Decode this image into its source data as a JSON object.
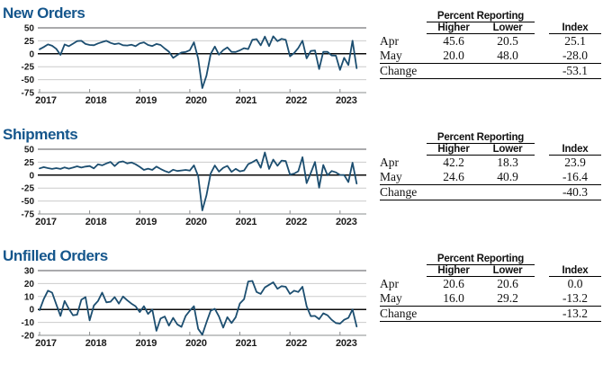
{
  "colors": {
    "title_blue": "#15568c",
    "line_blue": "#1c4e70"
  },
  "tables": [
    {
      "group_header": "Percent Reporting",
      "columns": {
        "higher": "Higher",
        "lower": "Lower",
        "index": "Index"
      },
      "rows": [
        {
          "label": "Apr",
          "higher": "45.6",
          "lower": "20.5",
          "index": "25.1"
        },
        {
          "label": "May",
          "higher": "20.0",
          "lower": "48.0",
          "index": "-28.0"
        },
        {
          "label": "Change",
          "higher": "",
          "lower": "",
          "index": "-53.1"
        }
      ]
    },
    {
      "group_header": "Percent Reporting",
      "columns": {
        "higher": "Higher",
        "lower": "Lower",
        "index": "Index"
      },
      "rows": [
        {
          "label": "Apr",
          "higher": "42.2",
          "lower": "18.3",
          "index": "23.9"
        },
        {
          "label": "May",
          "higher": "24.6",
          "lower": "40.9",
          "index": "-16.4"
        },
        {
          "label": "Change",
          "higher": "",
          "lower": "",
          "index": "-40.3"
        }
      ]
    },
    {
      "group_header": "Percent Reporting",
      "columns": {
        "higher": "Higher",
        "lower": "Lower",
        "index": "Index"
      },
      "rows": [
        {
          "label": "Apr",
          "higher": "20.6",
          "lower": "20.6",
          "index": "0.0"
        },
        {
          "label": "May",
          "higher": "16.0",
          "lower": "29.2",
          "index": "-13.2"
        },
        {
          "label": "Change",
          "higher": "",
          "lower": "",
          "index": "-13.2"
        }
      ]
    }
  ],
  "chart_data": [
    {
      "type": "line",
      "title": "New Orders",
      "x_start": "2017-01",
      "x_end": "2023-05",
      "x_tick_labels": [
        "2017",
        "2018",
        "2019",
        "2020",
        "2021",
        "2022",
        "2023"
      ],
      "y_ticks": [
        50,
        25,
        0,
        -25,
        -50,
        -75
      ],
      "ylim": [
        -75,
        50
      ],
      "grid": true,
      "legend": "none",
      "line_color": "#1c4e70",
      "values": [
        8.7,
        13.0,
        18.0,
        15.5,
        9.5,
        -2.0,
        18.0,
        14.5,
        19.5,
        24.5,
        25.0,
        19.0,
        17.0,
        16.5,
        20.0,
        22.5,
        25.0,
        21.0,
        18.5,
        20.0,
        16.5,
        16.0,
        17.5,
        14.5,
        20.0,
        22.0,
        17.0,
        15.0,
        19.0,
        17.0,
        10.0,
        4.0,
        -8.0,
        -2.5,
        2.5,
        3.5,
        7.0,
        22.1,
        -9.3,
        -66.3,
        -42.4,
        -0.6,
        13.9,
        -1.7,
        7.1,
        12.3,
        3.7,
        3.4,
        6.6,
        10.8,
        9.1,
        26.9,
        28.3,
        16.3,
        33.2,
        14.8,
        33.7,
        24.3,
        28.8,
        27.1,
        -5.0,
        1.4,
        11.1,
        25.1,
        -8.8,
        5.3,
        6.2,
        -29.6,
        3.7,
        3.7,
        -3.3,
        -3.6,
        -31.1,
        -7.8,
        -21.7,
        25.1,
        -28.0
      ]
    },
    {
      "type": "line",
      "title": "Shipments",
      "x_start": "2017-01",
      "x_end": "2023-05",
      "x_tick_labels": [
        "2017",
        "2018",
        "2019",
        "2020",
        "2021",
        "2022",
        "2023"
      ],
      "y_ticks": [
        50,
        25,
        0,
        -25,
        -50,
        -75
      ],
      "ylim": [
        -75,
        50
      ],
      "grid": true,
      "legend": "none",
      "line_color": "#1c4e70",
      "values": [
        13.0,
        15.5,
        13.5,
        12.0,
        13.5,
        12.0,
        15.0,
        12.5,
        14.5,
        17.0,
        14.5,
        16.5,
        17.5,
        13.0,
        21.0,
        19.0,
        22.5,
        25.5,
        17.5,
        25.0,
        26.5,
        22.5,
        24.5,
        21.0,
        16.0,
        10.0,
        12.5,
        10.0,
        16.5,
        12.0,
        8.0,
        5.0,
        10.5,
        8.0,
        9.0,
        10.0,
        8.6,
        18.9,
        -1.7,
        -68.1,
        -39.0,
        3.3,
        18.5,
        6.7,
        14.1,
        17.8,
        6.3,
        12.1,
        7.3,
        9.0,
        21.1,
        25.0,
        29.7,
        14.2,
        43.8,
        12.0,
        30.0,
        18.0,
        28.2,
        27.1,
        1.0,
        2.9,
        7.4,
        34.5,
        -15.4,
        4.0,
        25.3,
        -24.1,
        19.6,
        -0.3,
        8.0,
        5.3,
        0.3,
        0.1,
        -13.4,
        23.9,
        -16.4
      ]
    },
    {
      "type": "line",
      "title": "Unfilled Orders",
      "x_start": "2017-01",
      "x_end": "2023-05",
      "x_tick_labels": [
        "2017",
        "2018",
        "2019",
        "2020",
        "2021",
        "2022",
        "2023"
      ],
      "y_ticks": [
        30,
        20,
        10,
        0,
        -10,
        -20
      ],
      "ylim": [
        -20,
        30
      ],
      "grid": true,
      "legend": "none",
      "line_color": "#1c4e70",
      "values": [
        -0.5,
        8.0,
        14.5,
        13.0,
        4.0,
        -5.0,
        6.5,
        0.5,
        -4.5,
        -4.0,
        7.5,
        9.5,
        -8.5,
        3.0,
        6.5,
        13.0,
        5.5,
        6.0,
        9.5,
        4.5,
        10.0,
        7.0,
        4.5,
        2.5,
        -2.0,
        2.5,
        -3.5,
        0.0,
        -16.5,
        -7.0,
        -5.5,
        -12.5,
        -6.5,
        -11.5,
        -13.5,
        -5.0,
        -1.0,
        2.5,
        -15.0,
        -19.5,
        -10.0,
        -1.0,
        0.5,
        -5.5,
        -14.0,
        -6.0,
        -10.5,
        -6.0,
        4.6,
        8.0,
        21.6,
        22.0,
        13.5,
        12.0,
        17.0,
        19.0,
        21.0,
        16.0,
        18.0,
        17.5,
        12.0,
        14.5,
        13.5,
        17.5,
        2.5,
        -5.2,
        -5.0,
        -7.5,
        -3.0,
        -4.5,
        -8.0,
        -10.5,
        -11.0,
        -8.0,
        -6.5,
        0.0,
        -13.2
      ]
    }
  ]
}
